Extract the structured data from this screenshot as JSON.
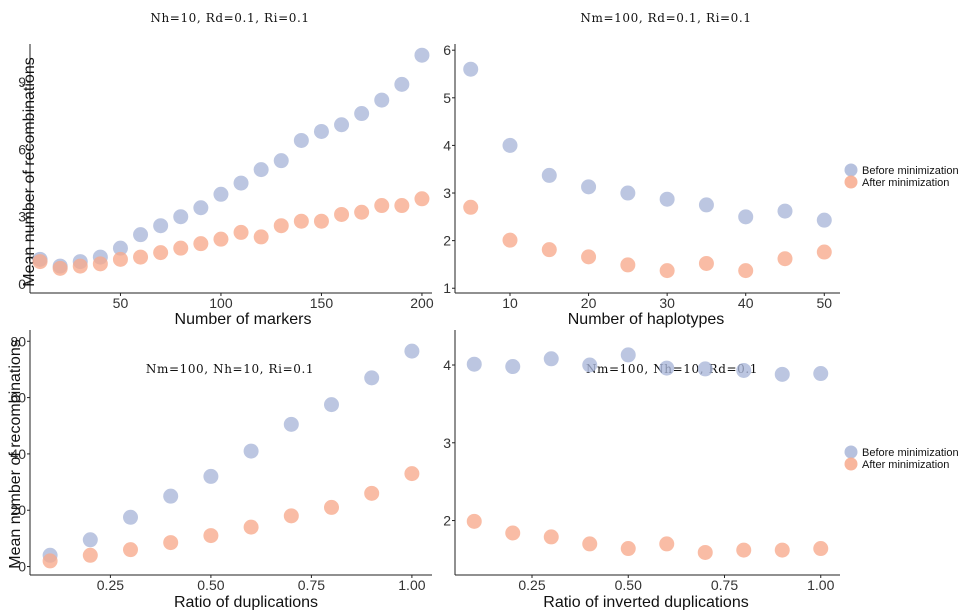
{
  "colors": {
    "before": "#a9b6d8",
    "after": "#f7a98c"
  },
  "legends": [
    {
      "panel": "top-right",
      "items": [
        "Before minimization",
        "After minimization"
      ]
    },
    {
      "panel": "bottom-right",
      "items": [
        "Before minimization",
        "After minimization"
      ]
    }
  ],
  "chart_data": [
    {
      "type": "scatter",
      "title": "Nh=10, Rd=0.1, Ri=0.1",
      "xlabel": "Number of markers",
      "ylabel": "Mean number of recombinations",
      "xlim": [
        5,
        205
      ],
      "ylim": [
        -0.4,
        10.7
      ],
      "xticks": [
        50,
        100,
        150,
        200
      ],
      "yticks": [
        0,
        3,
        6,
        9
      ],
      "x": [
        10,
        20,
        30,
        40,
        50,
        60,
        70,
        80,
        90,
        100,
        110,
        120,
        130,
        140,
        150,
        160,
        170,
        180,
        190,
        200
      ],
      "series": [
        {
          "name": "Before minimization",
          "values": [
            1.1,
            0.8,
            1.0,
            1.2,
            1.6,
            2.2,
            2.6,
            3.0,
            3.4,
            4.0,
            4.5,
            5.1,
            5.5,
            6.4,
            6.8,
            7.1,
            7.6,
            8.2,
            8.9,
            10.2
          ]
        },
        {
          "name": "After minimization",
          "values": [
            1.0,
            0.7,
            0.8,
            0.9,
            1.1,
            1.2,
            1.4,
            1.6,
            1.8,
            2.0,
            2.3,
            2.1,
            2.6,
            2.8,
            2.8,
            3.1,
            3.2,
            3.5,
            3.5,
            3.8
          ]
        }
      ]
    },
    {
      "type": "scatter",
      "title": "Nm=100, Rd=0.1, Ri=0.1",
      "xlabel": "Number of haplotypes",
      "ylabel": "",
      "xlim": [
        3,
        52
      ],
      "ylim": [
        0.9,
        6.13
      ],
      "xticks": [
        10,
        20,
        30,
        40,
        50
      ],
      "yticks": [
        1,
        2,
        3,
        4,
        5,
        6
      ],
      "x": [
        5,
        10,
        15,
        20,
        25,
        30,
        35,
        40,
        45,
        50
      ],
      "series": [
        {
          "name": "Before minimization",
          "values": [
            5.6,
            4.0,
            3.37,
            3.13,
            3.0,
            2.87,
            2.75,
            2.5,
            2.62,
            2.43
          ]
        },
        {
          "name": "After minimization",
          "values": [
            2.7,
            2.01,
            1.81,
            1.66,
            1.49,
            1.37,
            1.52,
            1.37,
            1.62,
            1.76
          ]
        }
      ]
    },
    {
      "type": "scatter",
      "title": "Nm=100, Nh=10, Ri=0.1",
      "xlabel": "Ratio of duplications",
      "ylabel": "Mean number of recombinations",
      "xlim": [
        0.05,
        1.05
      ],
      "ylim": [
        -3,
        84
      ],
      "xticks": [
        "0.25",
        "0.50",
        "0.75",
        "1.00"
      ],
      "yticks": [
        0,
        20,
        40,
        60,
        80
      ],
      "x": [
        0.1,
        0.2,
        0.3,
        0.4,
        0.5,
        0.6,
        0.7,
        0.8,
        0.9,
        1.0
      ],
      "series": [
        {
          "name": "Before minimization",
          "values": [
            4,
            9.5,
            17.5,
            25,
            32,
            41,
            50.5,
            57.5,
            67,
            76.5
          ]
        },
        {
          "name": "After minimization",
          "values": [
            2,
            4,
            6,
            8.5,
            11,
            14,
            18,
            21,
            26,
            33
          ]
        }
      ]
    },
    {
      "type": "scatter",
      "title": "Nm=100, Nh=10, Rd=0.1",
      "xlabel": "Ratio of inverted duplications",
      "ylabel": "",
      "xlim": [
        0.05,
        1.05
      ],
      "ylim": [
        1.3,
        4.45
      ],
      "xticks": [
        "0.25",
        "0.50",
        "0.75",
        "1.00"
      ],
      "yticks": [
        2,
        3,
        4
      ],
      "x": [
        0.1,
        0.2,
        0.3,
        0.4,
        0.5,
        0.6,
        0.7,
        0.8,
        0.9,
        1.0
      ],
      "series": [
        {
          "name": "Before minimization",
          "values": [
            4.01,
            3.98,
            4.08,
            4.0,
            4.13,
            3.96,
            3.95,
            3.93,
            3.88,
            3.89
          ]
        },
        {
          "name": "After minimization",
          "values": [
            1.99,
            1.84,
            1.79,
            1.7,
            1.64,
            1.7,
            1.59,
            1.62,
            1.62,
            1.64
          ]
        }
      ]
    }
  ]
}
